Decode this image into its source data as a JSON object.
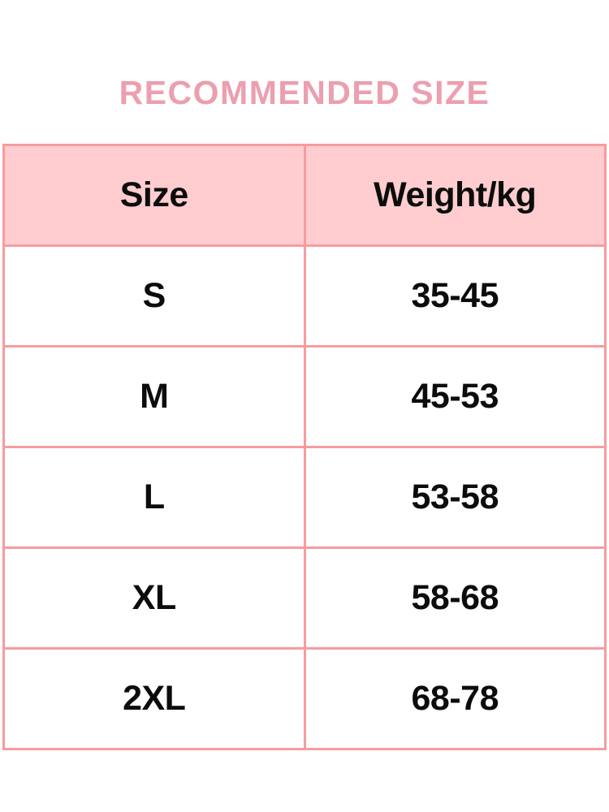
{
  "title": "RECOMMENDED SIZE",
  "colors": {
    "title_text": "#ec9fae",
    "table_border": "#f79c9e",
    "header_background": "#ffcdcf",
    "cell_background": "#ffffff",
    "cell_text": "#0c0c0c",
    "page_background": "#ffffff"
  },
  "chart_data": {
    "type": "table",
    "title": "RECOMMENDED SIZE",
    "columns": [
      "Size",
      "Weight/kg"
    ],
    "rows": [
      [
        "S",
        "35-45"
      ],
      [
        "M",
        "45-53"
      ],
      [
        "L",
        "53-58"
      ],
      [
        "XL",
        "58-68"
      ],
      [
        "2XL",
        "68-78"
      ]
    ]
  }
}
